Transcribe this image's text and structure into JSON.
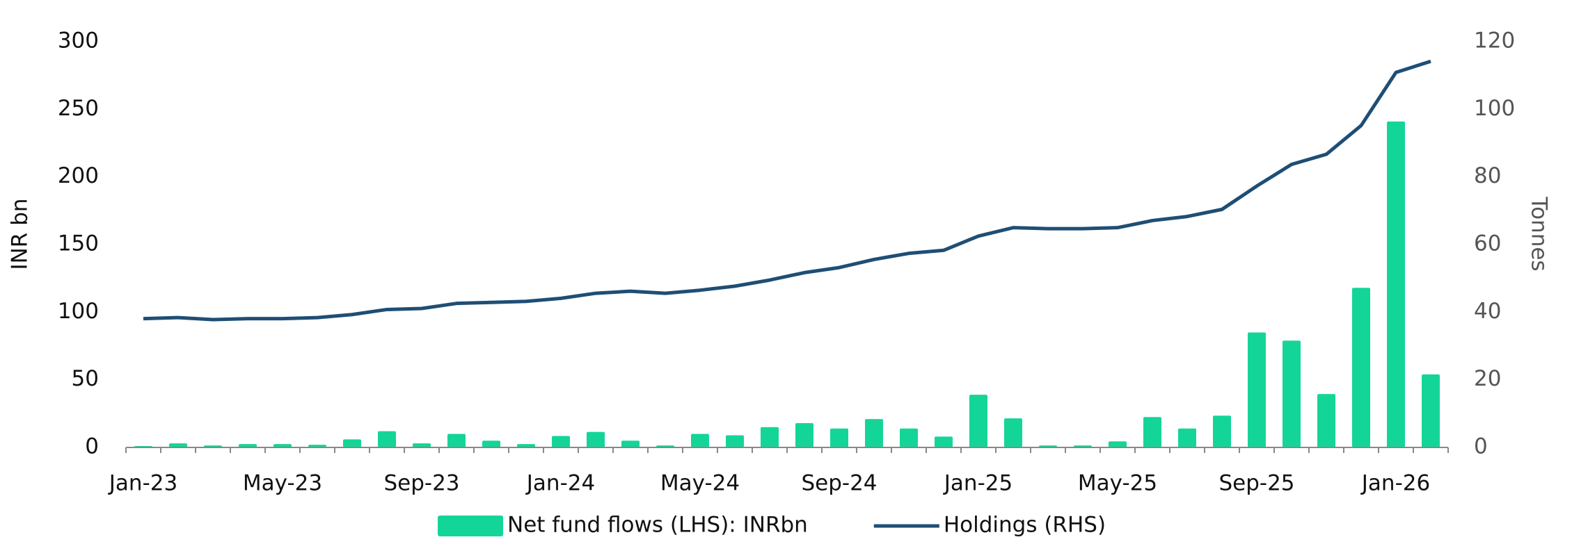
{
  "chart_data": {
    "type": "bar_line",
    "categories": [
      "Jan-23",
      null,
      null,
      null,
      "May-23",
      null,
      null,
      null,
      "Sep-23",
      null,
      null,
      null,
      "Jan-24",
      null,
      null,
      null,
      "May-24",
      null,
      null,
      null,
      "Sep-24",
      null,
      null,
      null,
      "Jan-25",
      null,
      null,
      null,
      "May-25",
      null,
      null,
      null,
      "Sep-25",
      null,
      null,
      null,
      "Jan-26",
      null
    ],
    "series": [
      {
        "name": "Net fund flows (LHS): INRbn",
        "color": "#14d598",
        "type": "bar",
        "values": [
          1,
          3,
          1.5,
          2.5,
          2.5,
          2,
          6,
          12,
          3,
          10,
          5,
          2.5,
          8.5,
          11.5,
          5,
          1.5,
          10,
          9,
          15,
          18,
          14,
          21,
          14,
          8,
          39,
          21.5,
          1.5,
          1.5,
          4.5,
          22.5,
          14,
          23.5,
          85,
          79,
          39.5,
          118,
          241,
          54
        ]
      },
      {
        "name": "Holdings (RHS)",
        "color": "#1e4e75",
        "type": "line",
        "axis": "y2",
        "values": [
          38.1,
          38.4,
          37.8,
          38.1,
          38.1,
          38.4,
          39.3,
          40.8,
          41.1,
          42.6,
          42.9,
          43.2,
          44.1,
          45.6,
          46.2,
          45.6,
          46.5,
          47.7,
          49.5,
          51.7,
          53.2,
          55.6,
          57.4,
          58.3,
          62.5,
          65,
          64.7,
          64.7,
          65,
          67.1,
          68.3,
          70.4,
          77.3,
          83.7,
          86.7,
          95.2,
          110.9,
          114.2
        ]
      }
    ],
    "ylabel": "INR bn",
    "y2label": "Tonnes",
    "ylim": [
      0,
      300
    ],
    "yticks": [
      0,
      50,
      100,
      150,
      200,
      250,
      300
    ],
    "y2lim": [
      0,
      120
    ],
    "y2ticks": [
      0,
      20,
      40,
      60,
      80,
      100,
      120
    ],
    "legend": "bottom"
  }
}
